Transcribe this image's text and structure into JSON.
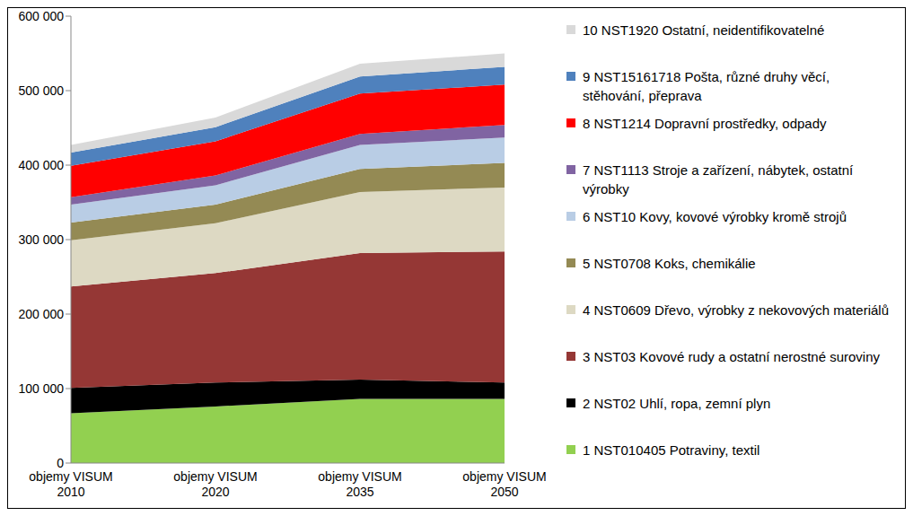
{
  "chart_data": {
    "type": "area",
    "stacked": true,
    "legend": "right",
    "grid": false,
    "categories": [
      "objemy VISUM 2010",
      "objemy VISUM 2020",
      "objemy VISUM 2035",
      "objemy VISUM 2050"
    ],
    "ylim": [
      0,
      600000
    ],
    "yticks": [
      {
        "value": 0,
        "label": "0"
      },
      {
        "value": 100000,
        "label": "100 000"
      },
      {
        "value": 200000,
        "label": "200 000"
      },
      {
        "value": 300000,
        "label": "300 000"
      },
      {
        "value": 400000,
        "label": "400 000"
      },
      {
        "value": 500000,
        "label": "500 000"
      },
      {
        "value": 600000,
        "label": "600 000"
      }
    ],
    "series": [
      {
        "name": "1 NST010405 Potraviny, textil",
        "color": "#92d050",
        "values": [
          67000,
          76000,
          86000,
          86000
        ]
      },
      {
        "name": "2 NST02 Uhlí, ropa, zemní plyn",
        "color": "#000000",
        "values": [
          34000,
          32000,
          26000,
          22000
        ]
      },
      {
        "name": "3 NST03 Kovové rudy a ostatní nerostné suroviny",
        "color": "#953735",
        "values": [
          136000,
          147000,
          170000,
          176000
        ]
      },
      {
        "name": "4 NST0609 Dřevo, výrobky z nekovových materiálů",
        "color": "#ddd9c3",
        "values": [
          62000,
          67000,
          82000,
          86000
        ]
      },
      {
        "name": "5 NST0708 Koks, chemikálie",
        "color": "#948a54",
        "values": [
          24000,
          25000,
          31000,
          33000
        ]
      },
      {
        "name": "6 NST10 Kovy, kovové výrobky kromě strojů",
        "color": "#b9cde5",
        "values": [
          24000,
          26000,
          32000,
          34000
        ]
      },
      {
        "name": "7 NST1113 Stroje a zařízení, nábytek, ostatní výrobky",
        "color": "#8064a2",
        "values": [
          10000,
          13000,
          15000,
          17000
        ]
      },
      {
        "name": "8 NST1214 Dopravní prostředky, odpady",
        "color": "#ff0000",
        "values": [
          42000,
          46000,
          54000,
          54000
        ]
      },
      {
        "name": "9 NST15161718 Pošta, různé druhy věcí, stěhování, přeprava",
        "color": "#4f81bd",
        "values": [
          18000,
          19000,
          23000,
          24000
        ]
      },
      {
        "name": "10 NST1920 Ostatní, neidentifikovatelné",
        "color": "#d9d9d9",
        "values": [
          10000,
          13000,
          17000,
          18000
        ]
      }
    ]
  }
}
